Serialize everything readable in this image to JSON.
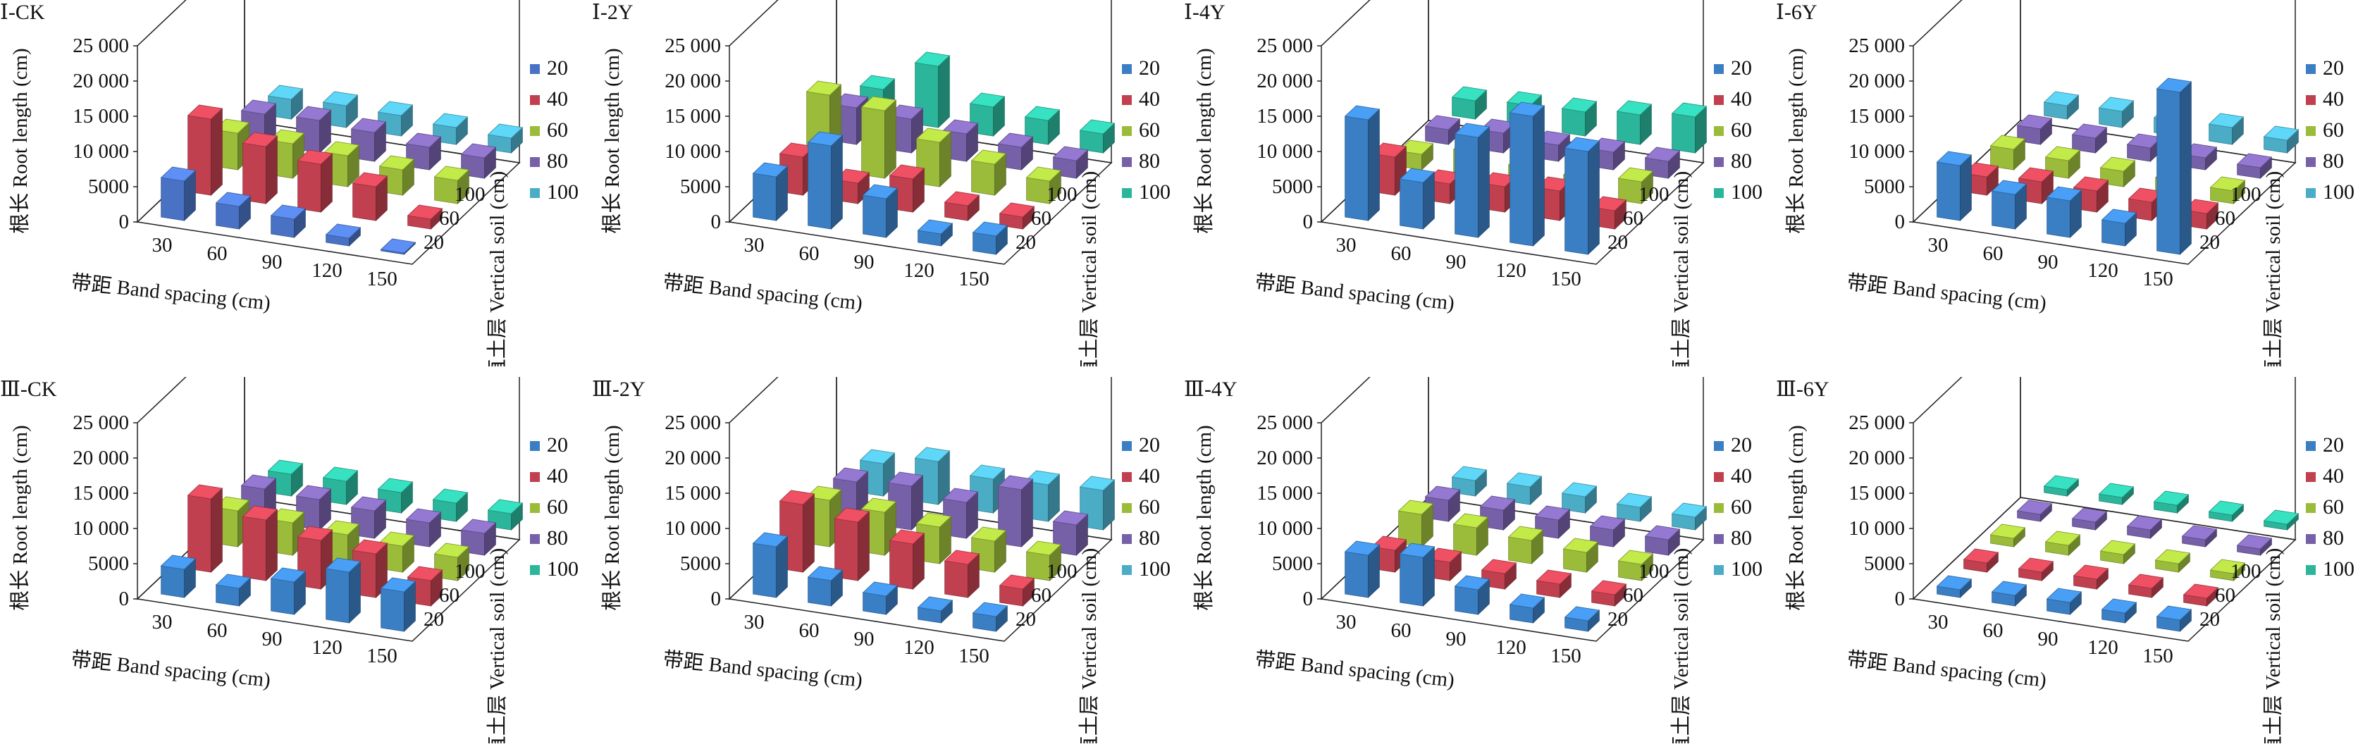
{
  "figure": {
    "ylabel": "根长 Root length (cm)",
    "xlabel": "带距 Band spacing (cm)",
    "zlabel": "垂直土层 Vertical soil (cm)",
    "x_ticks": [
      "30",
      "60",
      "90",
      "120",
      "150"
    ],
    "y_ticks": [
      "25 000",
      "20 000",
      "15 000",
      "10 000",
      "5000",
      "0"
    ],
    "z_ticks": [
      "100",
      "60",
      "20"
    ],
    "legend_entries": [
      "20",
      "40",
      "60",
      "80",
      "100"
    ]
  },
  "chart_data": [
    {
      "title": "Ⅰ-CK",
      "type": "bar3d",
      "categories": [
        "30",
        "60",
        "90",
        "120",
        "150"
      ],
      "ylim": [
        0,
        25000
      ],
      "series": [
        {
          "name": "20",
          "color": "#4a72c4",
          "values": [
            5600,
            3200,
            2600,
            1100,
            200
          ]
        },
        {
          "name": "40",
          "color": "#c0404f",
          "values": [
            10800,
            8100,
            6800,
            4800,
            1400
          ]
        },
        {
          "name": "60",
          "color": "#9bbb3a",
          "values": [
            5200,
            4900,
            4400,
            3600,
            3300
          ]
        },
        {
          "name": "80",
          "color": "#7660a8",
          "values": [
            4300,
            4600,
            4100,
            3200,
            2900
          ]
        },
        {
          "name": "100",
          "color": "#4bacc6",
          "values": [
            2800,
            3100,
            2900,
            2400,
            2100
          ]
        }
      ]
    },
    {
      "title": "Ⅰ-2Y",
      "type": "bar3d",
      "categories": [
        "30",
        "60",
        "90",
        "120",
        "150"
      ],
      "ylim": [
        0,
        25000
      ],
      "series": [
        {
          "name": "20",
          "color": "#3a7ec4",
          "values": [
            6200,
            11800,
            5500,
            1700,
            2600
          ]
        },
        {
          "name": "40",
          "color": "#c0404f",
          "values": [
            5400,
            2900,
            4700,
            2100,
            1700
          ]
        },
        {
          "name": "60",
          "color": "#9bbb3a",
          "values": [
            10600,
            9600,
            6300,
            4400,
            3200
          ]
        },
        {
          "name": "80",
          "color": "#7660a8",
          "values": [
            5200,
            4800,
            3900,
            3200,
            2500
          ]
        },
        {
          "name": "100",
          "color": "#2bb59a",
          "values": [
            4200,
            8700,
            4100,
            3400,
            2700
          ]
        }
      ]
    },
    {
      "title": "Ⅰ-4Y",
      "type": "bar3d",
      "categories": [
        "30",
        "60",
        "90",
        "120",
        "150"
      ],
      "ylim": [
        0,
        25000
      ],
      "series": [
        {
          "name": "20",
          "color": "#3a7ec4",
          "values": [
            14300,
            6600,
            14200,
            18400,
            14600
          ]
        },
        {
          "name": "40",
          "color": "#c0404f",
          "values": [
            5400,
            2800,
            3600,
            4200,
            2600
          ]
        },
        {
          "name": "60",
          "color": "#9bbb3a",
          "values": [
            2200,
            3600,
            2600,
            2400,
            3100
          ]
        },
        {
          "name": "80",
          "color": "#7660a8",
          "values": [
            2100,
            2800,
            2300,
            2500,
            2400
          ]
        },
        {
          "name": "100",
          "color": "#2bb59a",
          "values": [
            2600,
            3100,
            3400,
            4200,
            5100
          ]
        }
      ]
    },
    {
      "title": "Ⅰ-6Y",
      "type": "bar3d",
      "categories": [
        "30",
        "60",
        "90",
        "120",
        "150"
      ],
      "ylim": [
        0,
        25000
      ],
      "series": [
        {
          "name": "20",
          "color": "#3a7ec4",
          "values": [
            7800,
            4900,
            5200,
            3200,
            23000
          ]
        },
        {
          "name": "40",
          "color": "#c0404f",
          "values": [
            2600,
            3100,
            3000,
            2600,
            2200
          ]
        },
        {
          "name": "60",
          "color": "#9bbb3a",
          "values": [
            2900,
            2500,
            2200,
            2000,
            1800
          ]
        },
        {
          "name": "80",
          "color": "#7660a8",
          "values": [
            2200,
            2100,
            1900,
            1700,
            1500
          ]
        },
        {
          "name": "100",
          "color": "#4bacc6",
          "values": [
            1900,
            2300,
            2100,
            2400,
            1800
          ]
        }
      ]
    },
    {
      "title": "Ⅲ-CK",
      "type": "bar3d",
      "categories": [
        "30",
        "60",
        "90",
        "120",
        "150"
      ],
      "ylim": [
        0,
        25000
      ],
      "series": [
        {
          "name": "20",
          "color": "#3a7ec4",
          "values": [
            4000,
            2500,
            4600,
            7200,
            5600
          ]
        },
        {
          "name": "40",
          "color": "#c0404f",
          "values": [
            10400,
            8600,
            6900,
            6200,
            3600
          ]
        },
        {
          "name": "60",
          "color": "#9bbb3a",
          "values": [
            5100,
            4600,
            4100,
            3700,
            3300
          ]
        },
        {
          "name": "80",
          "color": "#7660a8",
          "values": [
            4600,
            4300,
            3900,
            3400,
            3100
          ]
        },
        {
          "name": "100",
          "color": "#2bb59a",
          "values": [
            3100,
            3300,
            2900,
            2600,
            2300
          ]
        }
      ]
    },
    {
      "title": "Ⅲ-2Y",
      "type": "bar3d",
      "categories": [
        "30",
        "60",
        "90",
        "120",
        "150"
      ],
      "ylim": [
        0,
        25000
      ],
      "series": [
        {
          "name": "20",
          "color": "#3a7ec4",
          "values": [
            7200,
            3600,
            2600,
            1700,
            2100
          ]
        },
        {
          "name": "40",
          "color": "#c0404f",
          "values": [
            9600,
            8300,
            6400,
            4700,
            2400
          ]
        },
        {
          "name": "60",
          "color": "#9bbb3a",
          "values": [
            6600,
            6100,
            5200,
            4400,
            3600
          ]
        },
        {
          "name": "80",
          "color": "#7660a8",
          "values": [
            5600,
            6200,
            5100,
            8100,
            4300
          ]
        },
        {
          "name": "100",
          "color": "#4bacc6",
          "values": [
            4600,
            6100,
            4800,
            5200,
            5600
          ]
        }
      ]
    },
    {
      "title": "Ⅲ-4Y",
      "type": "bar3d",
      "categories": [
        "30",
        "60",
        "90",
        "120",
        "150"
      ],
      "ylim": [
        0,
        25000
      ],
      "series": [
        {
          "name": "20",
          "color": "#3a7ec4",
          "values": [
            6000,
            6900,
            3500,
            2100,
            1500
          ]
        },
        {
          "name": "40",
          "color": "#c0404f",
          "values": [
            3100,
            2600,
            2200,
            1900,
            1600
          ]
        },
        {
          "name": "60",
          "color": "#9bbb3a",
          "values": [
            4600,
            3900,
            3300,
            2800,
            2300
          ]
        },
        {
          "name": "80",
          "color": "#7660a8",
          "values": [
            3000,
            2800,
            2600,
            2400,
            2200
          ]
        },
        {
          "name": "100",
          "color": "#4bacc6",
          "values": [
            2200,
            2500,
            2300,
            2000,
            1800
          ]
        }
      ]
    },
    {
      "title": "Ⅲ-6Y",
      "type": "bar3d",
      "categories": [
        "30",
        "60",
        "90",
        "120",
        "150"
      ],
      "ylim": [
        0,
        25000
      ],
      "series": [
        {
          "name": "20",
          "color": "#3a7ec4",
          "values": [
            1100,
            1500,
            1700,
            1400,
            1600
          ]
        },
        {
          "name": "40",
          "color": "#c0404f",
          "values": [
            1300,
            1200,
            1400,
            1300,
            1100
          ]
        },
        {
          "name": "60",
          "color": "#9bbb3a",
          "values": [
            1200,
            1400,
            1300,
            1200,
            1000
          ]
        },
        {
          "name": "80",
          "color": "#7660a8",
          "values": [
            1000,
            1100,
            1200,
            1000,
            900
          ]
        },
        {
          "name": "100",
          "color": "#2bb59a",
          "values": [
            900,
            1000,
            1100,
            900,
            800
          ]
        }
      ]
    }
  ]
}
